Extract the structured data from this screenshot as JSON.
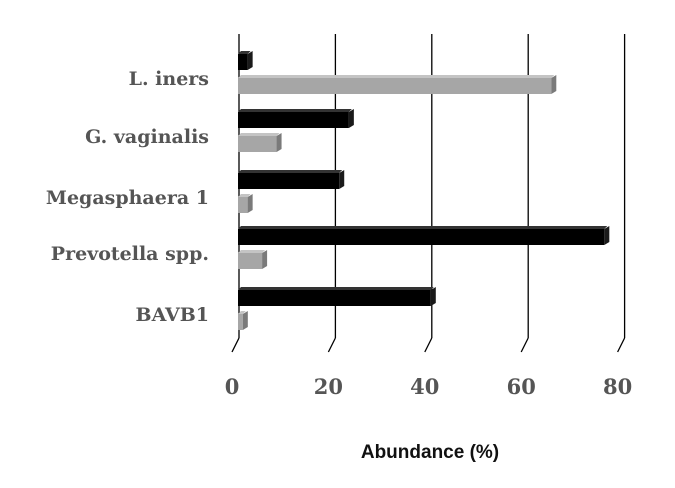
{
  "chart_data": {
    "type": "bar",
    "orientation": "horizontal",
    "style": "3d",
    "categories": [
      "L. iners",
      "G. vaginalis",
      "Megasphaera 1",
      "Prevotella spp.",
      "BAVB1"
    ],
    "series": [
      {
        "values": [
          2,
          23,
          21,
          76,
          40
        ],
        "color": "#000000"
      },
      {
        "values": [
          65,
          8,
          2,
          5,
          1
        ],
        "color": "#a6a6a6"
      }
    ],
    "xticks": [
      0,
      20,
      40,
      60,
      80
    ],
    "xlim": [
      0,
      80
    ],
    "xlabel": "Abundance (%)",
    "grid": "vertical"
  }
}
